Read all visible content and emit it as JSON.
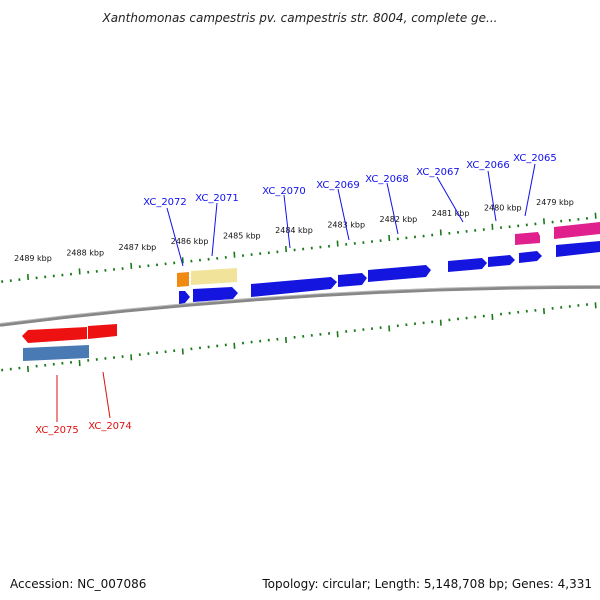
{
  "title": "Xanthomonas campestris pv. campestris str. 8004, complete ge...",
  "footer": {
    "accession": "Accession: NC_007086",
    "stats": "Topology: circular; Length: 5,148,708 bp; Genes: 4,331"
  },
  "colors": {
    "forward_label": "#1010ee",
    "reverse_label": "#dd1111",
    "tick": "#1a7a1a",
    "backbone": "#888888"
  },
  "kbp_labels": [
    "2489 kbp",
    "2488 kbp",
    "2487 kbp",
    "2486 kbp",
    "2485 kbp",
    "2484 kbp",
    "2483 kbp",
    "2482 kbp",
    "2481 kbp",
    "2480 kbp",
    "2479 kbp"
  ],
  "gene_labels": [
    {
      "text": "XC_2072",
      "strand": "forward"
    },
    {
      "text": "XC_2071",
      "strand": "forward"
    },
    {
      "text": "XC_2070",
      "strand": "forward"
    },
    {
      "text": "XC_2069",
      "strand": "forward"
    },
    {
      "text": "XC_2068",
      "strand": "forward"
    },
    {
      "text": "XC_2067",
      "strand": "forward"
    },
    {
      "text": "XC_2066",
      "strand": "forward"
    },
    {
      "text": "XC_2065",
      "strand": "forward"
    },
    {
      "text": "XC_2075",
      "strand": "reverse"
    },
    {
      "text": "XC_2074",
      "strand": "reverse"
    }
  ],
  "features": [
    {
      "id": "orange-feature",
      "color": "#f08a10"
    },
    {
      "id": "tan-feature",
      "color": "#f2e39a"
    },
    {
      "id": "xc2072-gene",
      "color": "#1515e0"
    },
    {
      "id": "xc2071-gene",
      "color": "#1515e0"
    },
    {
      "id": "xc2070-gene",
      "color": "#1515e0"
    },
    {
      "id": "xc2069-gene",
      "color": "#1515e0"
    },
    {
      "id": "xc2068-gene",
      "color": "#1515e0"
    },
    {
      "id": "xc2067-gene",
      "color": "#1515e0"
    },
    {
      "id": "xc2066-gene",
      "color": "#1515e0"
    },
    {
      "id": "xc2065-gene",
      "color": "#1515e0"
    },
    {
      "id": "magenta-feature-1",
      "color": "#e0208c"
    },
    {
      "id": "magenta-feature-2",
      "color": "#e0208c"
    },
    {
      "id": "blue-feature-right",
      "color": "#1515e0"
    },
    {
      "id": "xc2075-gene",
      "color": "#ee1111"
    },
    {
      "id": "xc2074-gene",
      "color": "#ee1111"
    },
    {
      "id": "steelblue-feature",
      "color": "#4a7ab4"
    }
  ]
}
